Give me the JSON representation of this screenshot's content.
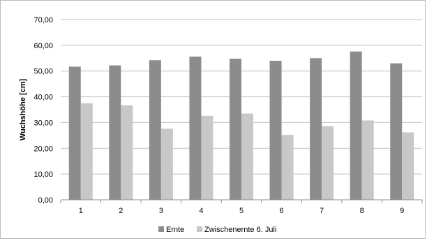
{
  "chart_data": {
    "type": "bar",
    "categories": [
      "1",
      "2",
      "3",
      "4",
      "5",
      "6",
      "7",
      "8",
      "9"
    ],
    "series": [
      {
        "name": "Ernte",
        "color": "#8c8c8c",
        "values": [
          51.7,
          52.2,
          54.2,
          55.6,
          54.8,
          54.0,
          55.0,
          57.6,
          53.0
        ]
      },
      {
        "name": "Zwischenernte 6. Juli",
        "color": "#c8c8c8",
        "values": [
          37.5,
          36.7,
          27.6,
          32.6,
          33.5,
          25.2,
          28.6,
          30.8,
          26.2
        ]
      }
    ],
    "ylabel": "Wuchshöhe  [cm]",
    "xlabel": "",
    "ylim": [
      0,
      70
    ],
    "yticks": [
      "0,00",
      "10,00",
      "20,00",
      "30,00",
      "40,00",
      "50,00",
      "60,00",
      "70,00"
    ],
    "grid": true,
    "legend": "bottom"
  }
}
